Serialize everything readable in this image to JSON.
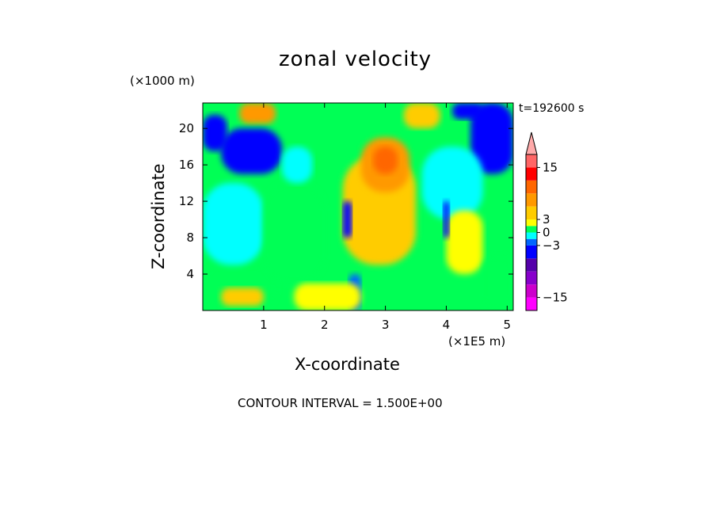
{
  "chart_data": {
    "type": "heatmap",
    "title": "zonal velocity",
    "xlabel": "X-coordinate",
    "ylabel": "Z-coordinate",
    "x_unit": "(×1E5 m)",
    "y_unit": "(×1000 m)",
    "time_label": "t=192600 s",
    "footer": "CONTOUR INTERVAL = 1.500E+00",
    "xlim": [
      0,
      5.1
    ],
    "ylim": [
      0,
      22.8
    ],
    "x_ticks": [
      1,
      2,
      3,
      4,
      5
    ],
    "x_tick_labels": [
      "1",
      "2",
      "3",
      "4",
      "5"
    ],
    "y_ticks": [
      4,
      8,
      12,
      16,
      20
    ],
    "y_tick_labels": [
      "4",
      "8",
      "12",
      "16",
      "20"
    ],
    "contour_interval": 1.5,
    "colorbar": {
      "levels": [
        -18,
        -15,
        -12,
        -9,
        -6,
        -3,
        -1.5,
        0,
        1.5,
        3,
        6,
        9,
        12,
        15,
        18,
        21
      ],
      "colors": [
        "#ff00ff",
        "#cc00cc",
        "#8800cc",
        "#5500aa",
        "#0000ff",
        "#0066ff",
        "#00ffff",
        "#00ff55",
        "#ffff00",
        "#ffcc00",
        "#ff9900",
        "#ff6600",
        "#ff0000",
        "#ff6666",
        "#ffaaaa"
      ],
      "tick_values": [
        15,
        3,
        0,
        -3,
        -15
      ],
      "tick_labels": [
        "15",
        "3",
        "0",
        "−3",
        "−15"
      ],
      "extend": "max"
    },
    "grid": false,
    "field_regions": [
      {
        "x": [
          0,
          5.1
        ],
        "z": [
          0,
          22.8
        ],
        "value": 0.5
      },
      {
        "x": [
          0,
          1.2
        ],
        "z": [
          0,
          5
        ],
        "value": 1
      },
      {
        "x": [
          0.3,
          1.0
        ],
        "z": [
          0.5,
          2.5
        ],
        "value": 3
      },
      {
        "x": [
          0,
          1.0
        ],
        "z": [
          5,
          14
        ],
        "value": -0.5
      },
      {
        "x": [
          1.0,
          2.0
        ],
        "z": [
          3,
          14
        ],
        "value": 1
      },
      {
        "x": [
          2.3,
          3.5
        ],
        "z": [
          5,
          17
        ],
        "value": 3
      },
      {
        "x": [
          2.6,
          3.4
        ],
        "z": [
          13,
          19
        ],
        "value": 6
      },
      {
        "x": [
          2.8,
          3.2
        ],
        "z": [
          15,
          18
        ],
        "value": 9
      },
      {
        "x": [
          0.6,
          1.2
        ],
        "z": [
          20.5,
          22.8
        ],
        "value": 6
      },
      {
        "x": [
          3.3,
          3.9
        ],
        "z": [
          20,
          22.8
        ],
        "value": 5
      },
      {
        "x": [
          0,
          0.4
        ],
        "z": [
          17.5,
          21.5
        ],
        "value": -6
      },
      {
        "x": [
          0.3,
          1.3
        ],
        "z": [
          15,
          20
        ],
        "value": -6
      },
      {
        "x": [
          4.4,
          5.1
        ],
        "z": [
          15,
          22.8
        ],
        "value": -4
      },
      {
        "x": [
          4.1,
          4.6
        ],
        "z": [
          21,
          22.8
        ],
        "value": -6
      },
      {
        "x": [
          1.3,
          1.8
        ],
        "z": [
          14,
          18
        ],
        "value": -1
      },
      {
        "x": [
          3.6,
          4.6
        ],
        "z": [
          10,
          18
        ],
        "value": -0.5
      },
      {
        "x": [
          4.0,
          4.6
        ],
        "z": [
          4,
          11
        ],
        "value": 2
      },
      {
        "x": [
          2.3,
          2.45
        ],
        "z": [
          8,
          12
        ],
        "value": -6
      },
      {
        "x": [
          3.95,
          4.05
        ],
        "z": [
          8,
          12
        ],
        "value": -4
      },
      {
        "x": [
          2.4,
          2.6
        ],
        "z": [
          0,
          4
        ],
        "value": -2
      },
      {
        "x": [
          1.5,
          2.6
        ],
        "z": [
          0,
          3
        ],
        "value": 2
      },
      {
        "x": [
          4.6,
          5.1
        ],
        "z": [
          0,
          6
        ],
        "value": 0
      }
    ]
  }
}
